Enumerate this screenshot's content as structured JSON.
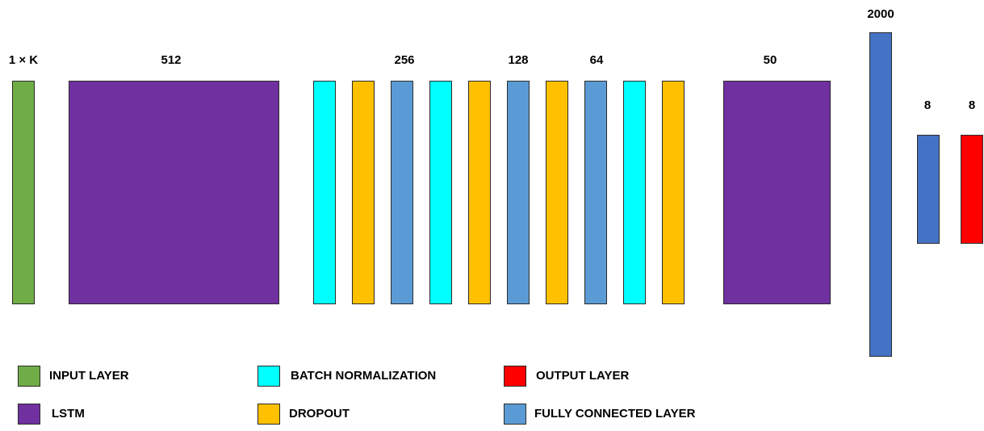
{
  "size_labels": {
    "input": "1 × K",
    "lstm1": "512",
    "block256": "256",
    "block128": "128",
    "block64": "64",
    "lstm2": "50",
    "fc2000": "2000",
    "fc8": "8",
    "output8": "8"
  },
  "legend": {
    "input_layer": "INPUT LAYER",
    "lstm": "LSTM",
    "batch_normalization": "BATCH NORMALIZATION",
    "dropout": "DROPOUT",
    "output_layer": "OUTPUT LAYER",
    "fully_connected_layer": "FULLY CONNECTED LAYER"
  },
  "colors": {
    "input_layer": "#70ad47",
    "lstm": "#7030a0",
    "batch_normalization": "#00ffff",
    "dropout": "#ffc000",
    "fully_connected_layer": "#5b9bd5",
    "fully_connected_layer_dark": "#4472c4",
    "output_layer": "#ff0000"
  }
}
